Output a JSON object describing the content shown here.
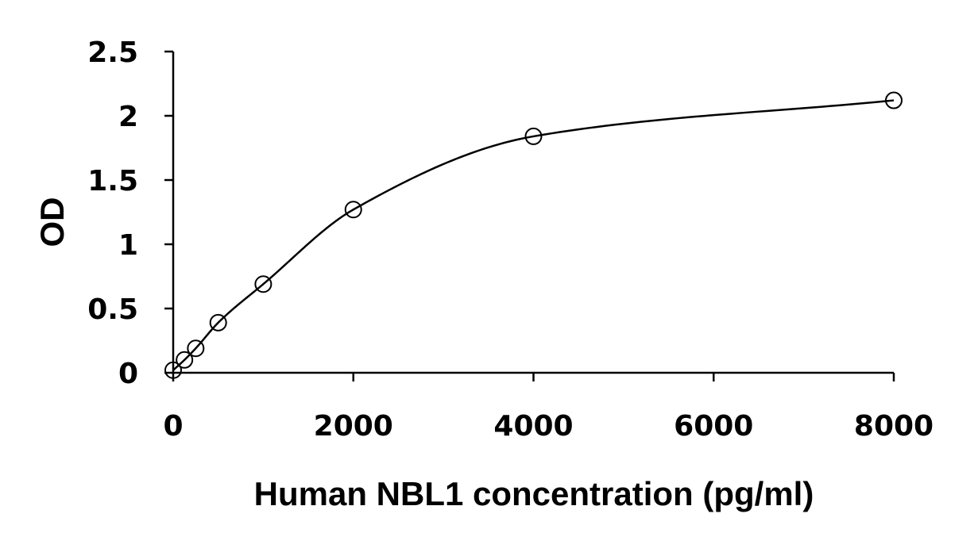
{
  "chart_data": {
    "type": "scatter",
    "xlabel": "Human NBL1 concentration (pg/ml)",
    "ylabel": "OD",
    "xlim": [
      0,
      8000
    ],
    "ylim": [
      0,
      2.5
    ],
    "x_ticks": [
      0,
      2000,
      4000,
      6000,
      8000
    ],
    "y_ticks": [
      0,
      0.5,
      1,
      1.5,
      2,
      2.5
    ],
    "x_tick_labels": [
      "0",
      "2000",
      "4000",
      "6000",
      "8000"
    ],
    "y_tick_labels": [
      "0",
      "0.5",
      "1",
      "1.5",
      "2",
      "2.5"
    ],
    "grid": false,
    "legend": "none",
    "fit_curve": true,
    "series": [
      {
        "x": [
          0,
          125,
          250,
          500,
          1000,
          2000,
          4000,
          8000
        ],
        "y": [
          0.02,
          0.1,
          0.19,
          0.39,
          0.69,
          1.27,
          1.84,
          2.12
        ]
      }
    ]
  }
}
